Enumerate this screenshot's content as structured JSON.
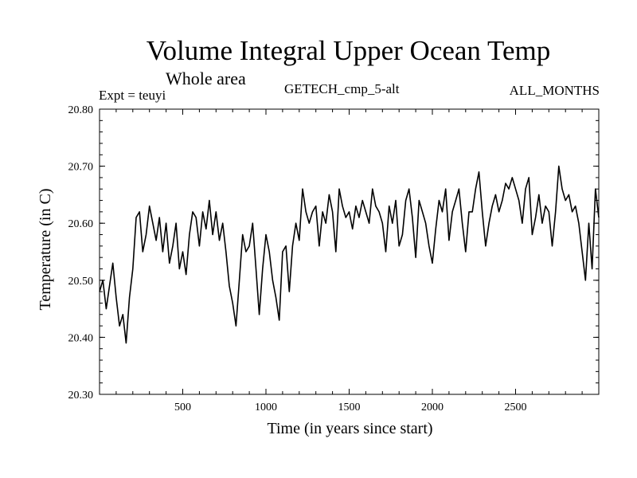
{
  "chart_data": {
    "type": "line",
    "title": "Volume Integral Upper Ocean Temp",
    "subtitle": "Whole area",
    "left_label": "Expt = teuyi",
    "center_label": "GETECH_cmp_5-alt",
    "right_label": "ALL_MONTHS",
    "xlabel": "Time (in years since start)",
    "ylabel": "Temperature (in C)",
    "xlim": [
      0,
      3000
    ],
    "ylim": [
      20.3,
      20.8
    ],
    "xticks": [
      500,
      1000,
      1500,
      2000,
      2500
    ],
    "xtick_labels": [
      "500",
      "1000",
      "1500",
      "2000",
      "2500"
    ],
    "yticks": [
      20.3,
      20.4,
      20.5,
      20.6,
      20.7,
      20.8
    ],
    "ytick_labels": [
      "20.30",
      "20.40",
      "20.50",
      "20.60",
      "20.70",
      "20.80"
    ],
    "line_color": "#000000",
    "series": [
      {
        "name": "teuyi",
        "x": [
          0,
          20,
          40,
          60,
          80,
          100,
          120,
          140,
          160,
          180,
          200,
          220,
          240,
          260,
          280,
          300,
          320,
          340,
          360,
          380,
          400,
          420,
          440,
          460,
          480,
          500,
          520,
          540,
          560,
          580,
          600,
          620,
          640,
          660,
          680,
          700,
          720,
          740,
          760,
          780,
          800,
          820,
          840,
          860,
          880,
          900,
          920,
          940,
          960,
          980,
          1000,
          1020,
          1040,
          1060,
          1080,
          1100,
          1120,
          1140,
          1160,
          1180,
          1200,
          1220,
          1240,
          1260,
          1280,
          1300,
          1320,
          1340,
          1360,
          1380,
          1400,
          1420,
          1440,
          1460,
          1480,
          1500,
          1520,
          1540,
          1560,
          1580,
          1600,
          1620,
          1640,
          1660,
          1680,
          1700,
          1720,
          1740,
          1760,
          1780,
          1800,
          1820,
          1840,
          1860,
          1880,
          1900,
          1920,
          1940,
          1960,
          1980,
          2000,
          2020,
          2040,
          2060,
          2080,
          2100,
          2120,
          2140,
          2160,
          2180,
          2200,
          2220,
          2240,
          2260,
          2280,
          2300,
          2320,
          2340,
          2360,
          2380,
          2400,
          2420,
          2440,
          2460,
          2480,
          2500,
          2520,
          2540,
          2560,
          2580,
          2600,
          2620,
          2640,
          2660,
          2680,
          2700,
          2720,
          2740,
          2760,
          2780,
          2800,
          2820,
          2840,
          2860,
          2880,
          2900,
          2920,
          2940,
          2960,
          2980,
          3000
        ],
        "values": [
          20.48,
          20.5,
          20.45,
          20.49,
          20.53,
          20.47,
          20.42,
          20.44,
          20.39,
          20.47,
          20.52,
          20.61,
          20.62,
          20.55,
          20.58,
          20.63,
          20.6,
          20.57,
          20.61,
          20.55,
          20.6,
          20.53,
          20.56,
          20.6,
          20.52,
          20.55,
          20.51,
          20.58,
          20.62,
          20.61,
          20.56,
          20.62,
          20.59,
          20.64,
          20.58,
          20.62,
          20.57,
          20.6,
          20.55,
          20.49,
          20.46,
          20.42,
          20.5,
          20.58,
          20.55,
          20.56,
          20.6,
          20.52,
          20.44,
          20.52,
          20.58,
          20.55,
          20.5,
          20.47,
          20.43,
          20.55,
          20.56,
          20.48,
          20.56,
          20.6,
          20.57,
          20.66,
          20.62,
          20.6,
          20.62,
          20.63,
          20.56,
          20.62,
          20.6,
          20.65,
          20.62,
          20.55,
          20.66,
          20.63,
          20.61,
          20.62,
          20.59,
          20.63,
          20.61,
          20.64,
          20.62,
          20.6,
          20.66,
          20.63,
          20.62,
          20.6,
          20.55,
          20.63,
          20.6,
          20.64,
          20.56,
          20.58,
          20.64,
          20.66,
          20.61,
          20.54,
          20.64,
          20.62,
          20.6,
          20.56,
          20.53,
          20.59,
          20.64,
          20.62,
          20.66,
          20.57,
          20.62,
          20.64,
          20.66,
          20.6,
          20.55,
          20.62,
          20.62,
          20.66,
          20.69,
          20.62,
          20.56,
          20.6,
          20.63,
          20.65,
          20.62,
          20.64,
          20.67,
          20.66,
          20.68,
          20.66,
          20.64,
          20.6,
          20.66,
          20.68,
          20.58,
          20.61,
          20.65,
          20.6,
          20.63,
          20.62,
          20.56,
          20.62,
          20.7,
          20.66,
          20.64,
          20.65,
          20.62,
          20.63,
          20.6,
          20.55,
          20.5,
          20.6,
          20.52,
          20.66,
          20.61
        ]
      }
    ]
  }
}
